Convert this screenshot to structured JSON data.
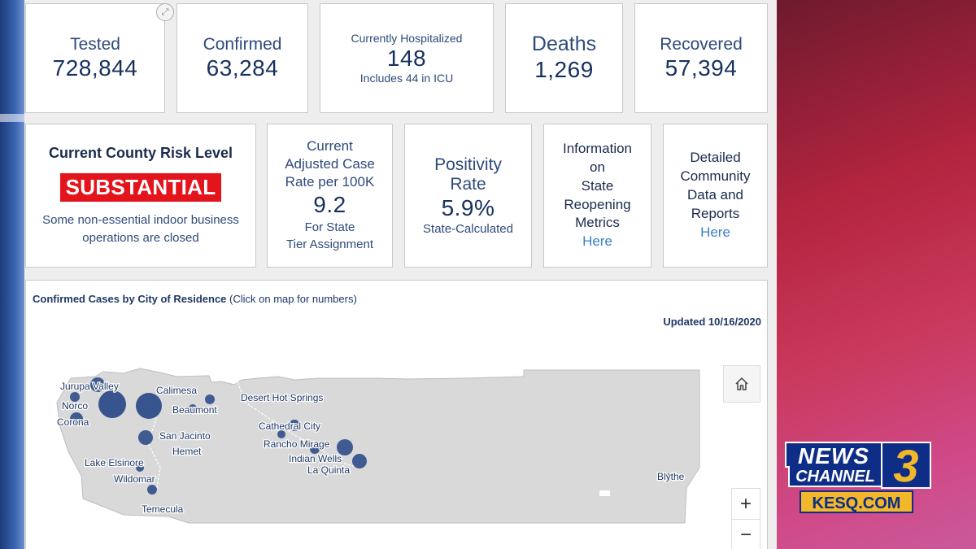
{
  "stats": {
    "tested": {
      "label": "Tested",
      "value": "728,844"
    },
    "confirmed": {
      "label": "Confirmed",
      "value": "63,284"
    },
    "hospitalized": {
      "label": "Currently Hospitalized",
      "value": "148",
      "note": "Includes 44 in ICU"
    },
    "deaths": {
      "label": "Deaths",
      "value": "1,269"
    },
    "recovered": {
      "label": "Recovered",
      "value": "57,394"
    }
  },
  "risk": {
    "title": "Current County Risk Level",
    "level": "SUBSTANTIAL",
    "desc_line1": "Some non-essential indoor business",
    "desc_line2": "operations are closed",
    "level_color": "#e3141b"
  },
  "case_rate": {
    "line1": "Current",
    "line2": "Adjusted Case",
    "line3": "Rate per 100K",
    "value": "9.2",
    "note1": "For State",
    "note2": "Tier Assignment"
  },
  "positivity": {
    "line1": "Positivity",
    "line2": "Rate",
    "value": "5.9%",
    "note": "State-Calculated"
  },
  "reopening": {
    "l1": "Information",
    "l2": "on",
    "l3": "State",
    "l4": "Reopening",
    "l5": "Metrics",
    "link": "Here"
  },
  "community": {
    "l1": "Detailed",
    "l2": "Community",
    "l3": "Data and",
    "l4": "Reports",
    "link": "Here"
  },
  "map": {
    "title_bold": "Confirmed Cases by City of Residence",
    "title_rest": " (Click on map for numbers)",
    "updated": "Updated 10/16/2020",
    "zoom_in": "+",
    "zoom_out": "−",
    "home_icon": "home-icon",
    "cities": {
      "jurupa": "Jurupa Valley",
      "norco": "Norco",
      "corona": "Corona",
      "calimesa": "Calimesa",
      "beaumont": "Beaumont",
      "san_jacinto": "San Jacinto",
      "hemet": "Hemet",
      "lake_elsinore": "Lake Elsinore",
      "wildomar": "Wildomar",
      "temecula": "Temecula",
      "desert_hot_springs": "Desert Hot Springs",
      "cathedral_city": "Cathedral City",
      "rancho_mirage": "Rancho Mirage",
      "indian_wells": "Indian Wells",
      "la_quinta": "La Quinta",
      "blythe": "Blythe"
    },
    "marker_color": "#2f4d8a",
    "land_color": "#d9d9d9"
  },
  "logo": {
    "news": "NEWS",
    "channel": "CHANNEL",
    "number": "3",
    "site": "KESQ.COM"
  }
}
